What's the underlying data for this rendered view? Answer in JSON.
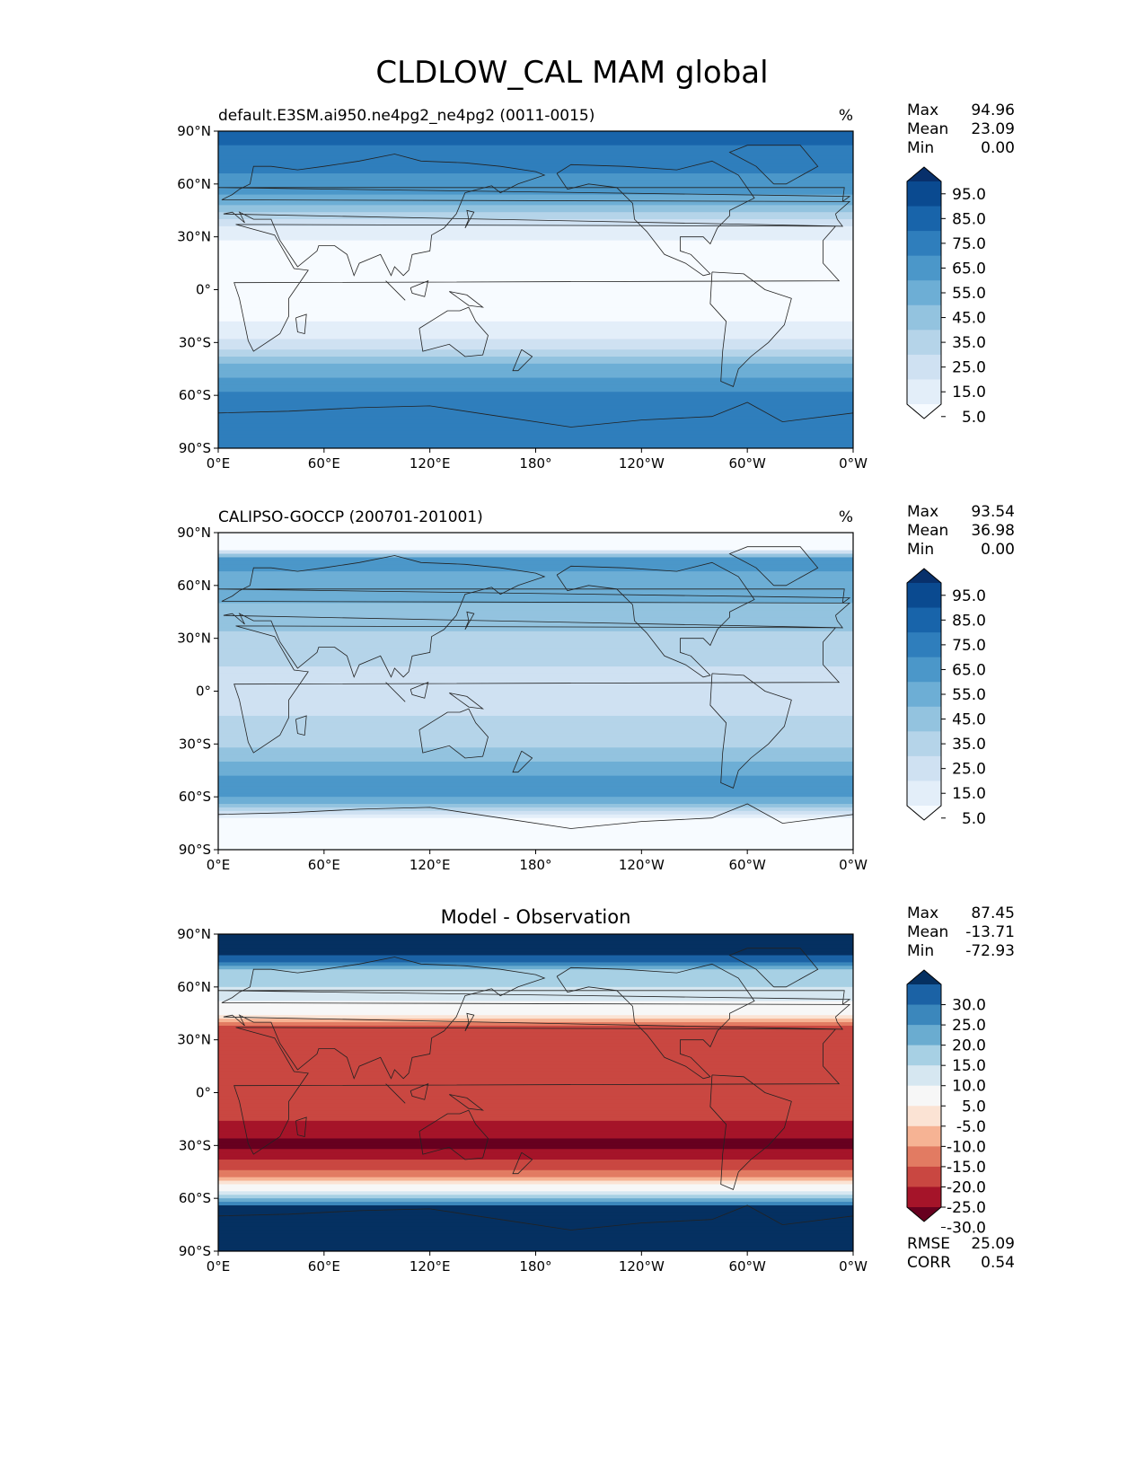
{
  "figure": {
    "title": "CLDLOW_CAL MAM global"
  },
  "axes": {
    "lat_ticks": [
      "90°N",
      "60°N",
      "30°N",
      "0°",
      "30°S",
      "60°S",
      "90°S"
    ],
    "lon_ticks": [
      "0°E",
      "60°E",
      "120°E",
      "180°",
      "120°W",
      "60°W",
      "0°W"
    ]
  },
  "colors": {
    "seq_cmap": [
      "#f7fbff",
      "#e3eef9",
      "#cfe1f2",
      "#b5d4e9",
      "#93c3df",
      "#6daed5",
      "#4b97c9",
      "#2f7ebc",
      "#1864aa",
      "#0a4a90",
      "#08306b"
    ],
    "div_cmap": [
      "#67001f",
      "#a51429",
      "#c94741",
      "#e27b62",
      "#f6b394",
      "#fbe3d4",
      "#f7f7f7",
      "#d6e7f1",
      "#a7d0e4",
      "#6aacd0",
      "#3b87bc",
      "#1b62a5",
      "#053061"
    ],
    "land_line": "#222222"
  },
  "chart_data": [
    {
      "type": "heatmap",
      "panel": "test",
      "title": "default.E3SM.ai950.ne4pg2_ne4pg2 (0011-0015)",
      "units": "%",
      "stats": [
        {
          "label": "Max",
          "value": "94.96"
        },
        {
          "label": "Mean",
          "value": "23.09"
        },
        {
          "label": "Min",
          "value": "0.00"
        }
      ],
      "colorbar_ticks": [
        "95.0",
        "85.0",
        "75.0",
        "65.0",
        "55.0",
        "45.0",
        "35.0",
        "25.0",
        "15.0",
        "5.0"
      ],
      "lat_profile": [
        {
          "lat": 85,
          "value": 82
        },
        {
          "lat": 70,
          "value": 72
        },
        {
          "lat": 55,
          "value": 62
        },
        {
          "lat": 45,
          "value": 42
        },
        {
          "lat": 35,
          "value": 15
        },
        {
          "lat": 20,
          "value": 5
        },
        {
          "lat": 0,
          "value": 3
        },
        {
          "lat": -15,
          "value": 8
        },
        {
          "lat": -30,
          "value": 22
        },
        {
          "lat": -45,
          "value": 55
        },
        {
          "lat": -60,
          "value": 72
        },
        {
          "lat": -70,
          "value": 80
        },
        {
          "lat": -85,
          "value": 78
        }
      ],
      "xlim": [
        0,
        360
      ],
      "ylim": [
        -90,
        90
      ]
    },
    {
      "type": "heatmap",
      "panel": "reference",
      "title": "CALIPSO-GOCCP (200701-201001)",
      "units": "%",
      "stats": [
        {
          "label": "Max",
          "value": "93.54"
        },
        {
          "label": "Mean",
          "value": "36.98"
        },
        {
          "label": "Min",
          "value": "0.00"
        }
      ],
      "colorbar_ticks": [
        "95.0",
        "85.0",
        "75.0",
        "65.0",
        "55.0",
        "45.0",
        "35.0",
        "25.0",
        "15.0",
        "5.0"
      ],
      "lat_profile": [
        {
          "lat": 82,
          "value": 0
        },
        {
          "lat": 75,
          "value": 62
        },
        {
          "lat": 60,
          "value": 58
        },
        {
          "lat": 45,
          "value": 45
        },
        {
          "lat": 30,
          "value": 38
        },
        {
          "lat": 15,
          "value": 30
        },
        {
          "lat": 0,
          "value": 27
        },
        {
          "lat": -15,
          "value": 30
        },
        {
          "lat": -30,
          "value": 38
        },
        {
          "lat": -45,
          "value": 55
        },
        {
          "lat": -55,
          "value": 68
        },
        {
          "lat": -65,
          "value": 48
        },
        {
          "lat": -72,
          "value": 5
        },
        {
          "lat": -82,
          "value": 0
        }
      ],
      "xlim": [
        0,
        360
      ],
      "ylim": [
        -90,
        90
      ]
    },
    {
      "type": "heatmap",
      "panel": "difference",
      "title": "Model - Observation",
      "units": "",
      "stats": [
        {
          "label": "Max",
          "value": "87.45"
        },
        {
          "label": "Mean",
          "value": "-13.71"
        },
        {
          "label": "Min",
          "value": "-72.93"
        }
      ],
      "colorbar_ticks": [
        "30.0",
        "25.0",
        "20.0",
        "15.0",
        "10.0",
        "5.0",
        "-5.0",
        "-10.0",
        "-15.0",
        "-20.0",
        "-25.0",
        "-30.0"
      ],
      "extra_stats": [
        {
          "label": "RMSE",
          "value": "25.09"
        },
        {
          "label": "CORR",
          "value": "0.54"
        }
      ],
      "lat_profile": [
        {
          "lat": 80,
          "value": 35
        },
        {
          "lat": 70,
          "value": 15
        },
        {
          "lat": 55,
          "value": 8
        },
        {
          "lat": 45,
          "value": -5
        },
        {
          "lat": 35,
          "value": -25
        },
        {
          "lat": 15,
          "value": -22
        },
        {
          "lat": 0,
          "value": -20
        },
        {
          "lat": -15,
          "value": -25
        },
        {
          "lat": -30,
          "value": -32
        },
        {
          "lat": -45,
          "value": -20
        },
        {
          "lat": -55,
          "value": 0
        },
        {
          "lat": -65,
          "value": 30
        },
        {
          "lat": -80,
          "value": 35
        }
      ],
      "xlim": [
        0,
        360
      ],
      "ylim": [
        -90,
        90
      ]
    }
  ]
}
